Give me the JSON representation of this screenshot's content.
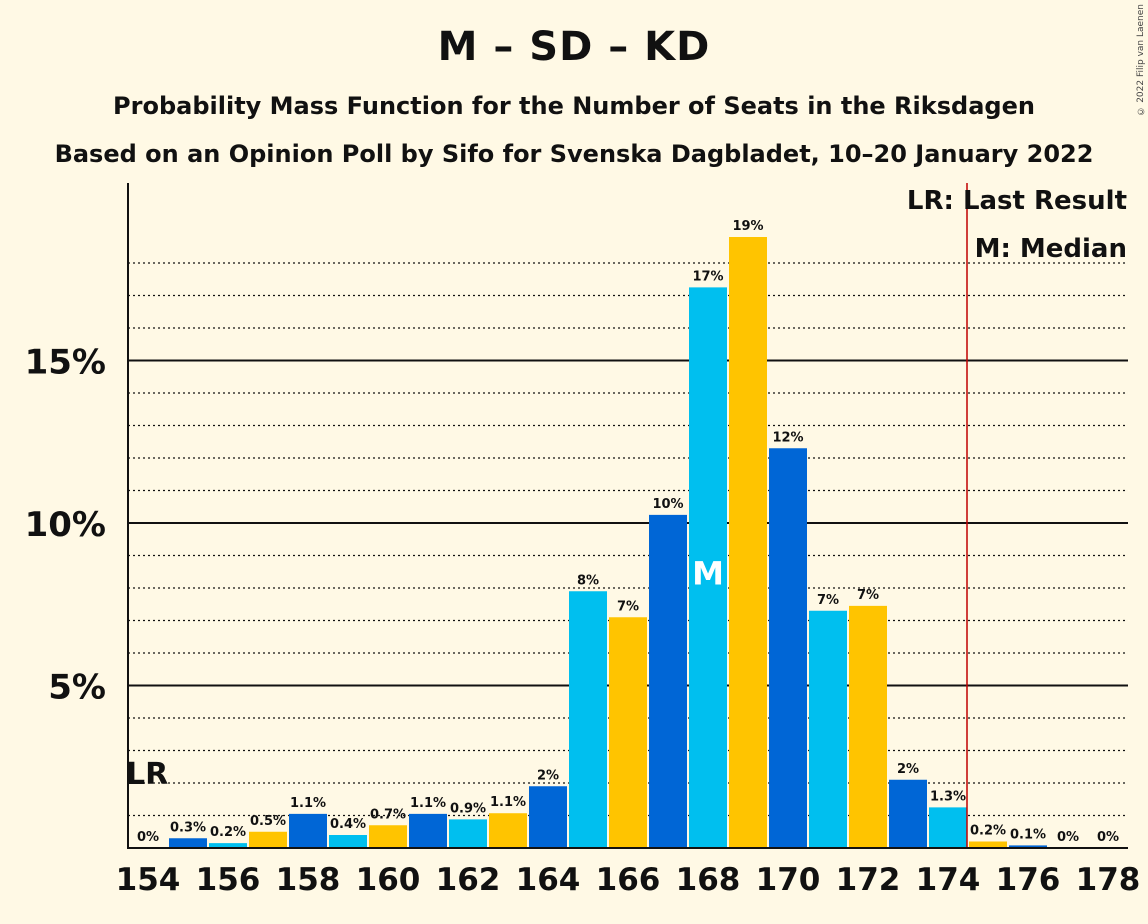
{
  "title": "M – SD – KD",
  "subtitle": "Probability Mass Function for the Number of Seats in the Riksdagen",
  "subtitle2": "Based on an Opinion Poll by Sifo for Svenska Dagbladet, 10–20 January 2022",
  "copyright": "© 2022 Filip van Laenen",
  "legend": {
    "last_result": "LR: Last Result",
    "median": "M: Median"
  },
  "colors": {
    "background": "#fff9e5",
    "blue_dark": "#0066d6",
    "blue_light": "#00bfef",
    "yellow": "#ffc400",
    "last_result_line": "#c00000"
  },
  "chart_data": {
    "type": "bar",
    "xlabel": "",
    "ylabel": "",
    "ylim": [
      0,
      20
    ],
    "y_major_ticks": [
      5,
      10,
      15
    ],
    "y_tick_labels": [
      "5%",
      "10%",
      "15%"
    ],
    "x_tick_labels": [
      "154",
      "156",
      "158",
      "160",
      "162",
      "164",
      "166",
      "168",
      "170",
      "172",
      "174",
      "176",
      "178"
    ],
    "last_result_seat": 154,
    "last_result_marker": "LR",
    "median_seat": 168,
    "median_marker": "M",
    "majority_line_after_seat": 174,
    "seats": [
      154,
      155,
      156,
      157,
      158,
      159,
      160,
      161,
      162,
      163,
      164,
      165,
      166,
      167,
      168,
      169,
      170,
      171,
      172,
      173,
      174,
      175,
      176,
      177,
      178
    ],
    "values": [
      0,
      0.3,
      0.15,
      0.5,
      1.05,
      0.4,
      0.7,
      1.05,
      0.88,
      1.07,
      1.9,
      7.9,
      7.1,
      10.25,
      17.25,
      18.8,
      12.3,
      7.3,
      7.45,
      2.1,
      1.25,
      0.2,
      0.08,
      0,
      0
    ],
    "labels": [
      "0%",
      "0.3%",
      "0.2%",
      "0.5%",
      "1.1%",
      "0.4%",
      "0.7%",
      "1.1%",
      "0.9%",
      "1.1%",
      "2%",
      "8%",
      "7%",
      "10%",
      "17%",
      "19%",
      "12%",
      "7%",
      "7%",
      "2%",
      "1.3%",
      "0.2%",
      "0.1%",
      "0%",
      "0%"
    ]
  }
}
